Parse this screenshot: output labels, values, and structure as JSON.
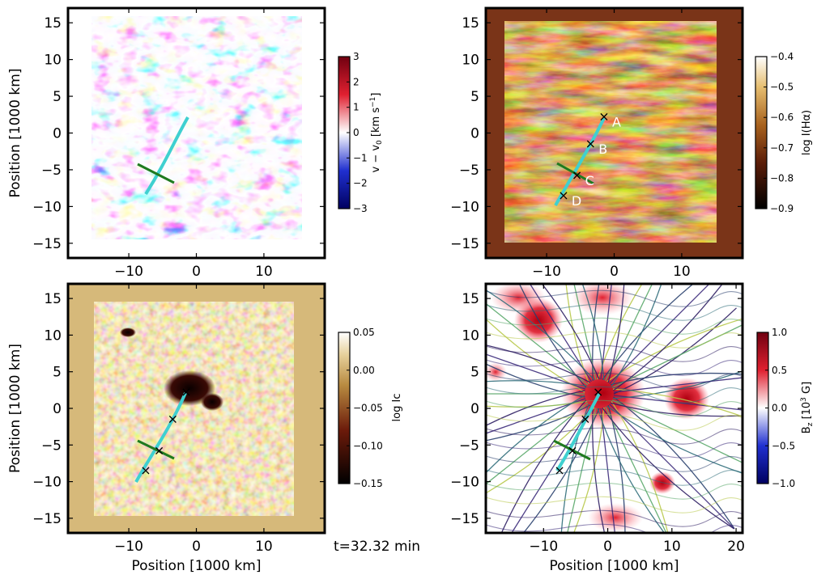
{
  "figure": {
    "time_label": "t=32.32 min"
  },
  "colors": {
    "doppler_red": "#c8102e",
    "doppler_blue": "#1b2a9c",
    "halpha_dark": "#2a0d05",
    "halpha_bright": "#fff2c8",
    "cont_dark": "#120400",
    "cont_bright": "#fffbe6",
    "bz_red": "#a50010",
    "bz_blue": "#00107a",
    "slit_cyan": "#3fd0d0",
    "cut_green": "#1f7a1f",
    "field_lines": "#2d1e63"
  },
  "chart_data": [
    {
      "id": "doppler",
      "type": "heatmap",
      "quantity": "line-of-sight velocity",
      "xlabel": "",
      "ylabel": "Position [1000 km]",
      "xlim": [
        -19,
        19
      ],
      "ylim": [
        -17,
        17
      ],
      "xticks": [
        "−10",
        "0",
        "10"
      ],
      "yticks": [
        "15",
        "10",
        "5",
        "0",
        "−5",
        "−10",
        "−15"
      ],
      "colorbar": {
        "label": "v − v0 [km s−1]",
        "range": [
          -3,
          3
        ],
        "ticks": [
          "3",
          "2",
          "1",
          "0",
          "−1",
          "−2",
          "−3"
        ],
        "colormap": "seismic (blue-white-red)"
      },
      "slit_markers": [],
      "cut_markers": [
        {
          "x": -5.5,
          "y": -6.0
        }
      ]
    },
    {
      "id": "halpha",
      "type": "heatmap",
      "quantity": "H-alpha line-core intensity",
      "xlabel": "",
      "ylabel": "",
      "xlim": [
        -19,
        19
      ],
      "ylim": [
        -17,
        17
      ],
      "xticks": [
        "−10",
        "0",
        "10"
      ],
      "yticks": [
        "15",
        "10",
        "5",
        "0",
        "−5",
        "−10",
        "−15"
      ],
      "colorbar": {
        "label": "log I(Hα)",
        "range": [
          -0.9,
          -0.4
        ],
        "ticks": [
          "−0.4",
          "−0.5",
          "−0.6",
          "−0.7",
          "−0.8",
          "−0.9"
        ],
        "colormap": "afmhot"
      },
      "slit_markers": [
        {
          "label": "A",
          "x": -1.5,
          "y": 2.2
        },
        {
          "label": "B",
          "x": -3.5,
          "y": -1.5
        },
        {
          "label": "C",
          "x": -5.5,
          "y": -5.8
        },
        {
          "label": "D",
          "x": -7.5,
          "y": -8.5
        }
      ]
    },
    {
      "id": "continuum",
      "type": "heatmap",
      "quantity": "continuum intensity",
      "xlabel": "Position [1000 km]",
      "ylabel": "Position [1000 km]",
      "xlim": [
        -19,
        19
      ],
      "ylim": [
        -17,
        17
      ],
      "xticks": [
        "−10",
        "0",
        "10"
      ],
      "yticks": [
        "15",
        "10",
        "5",
        "0",
        "−5",
        "−10",
        "−15"
      ],
      "colorbar": {
        "label": "log Ic",
        "range": [
          -0.15,
          0.05
        ],
        "ticks": [
          "0.05",
          "0.00",
          "−0.05",
          "−0.10",
          "−0.15"
        ],
        "colormap": "copper-like"
      },
      "slit_markers": [
        {
          "x": -1.5,
          "y": 2.2
        },
        {
          "x": -3.5,
          "y": -1.5
        },
        {
          "x": -5.5,
          "y": -5.8
        },
        {
          "x": -7.5,
          "y": -8.5
        }
      ]
    },
    {
      "id": "bz",
      "type": "heatmap",
      "quantity": "vertical magnetic field with field-line streamlines",
      "xlabel": "Position [1000 km]",
      "ylabel": "",
      "xlim": [
        -19,
        21
      ],
      "ylim": [
        -17,
        17
      ],
      "xticks": [
        "−10",
        "0",
        "10",
        "20"
      ],
      "yticks": [
        "15",
        "10",
        "5",
        "0",
        "−5",
        "−10",
        "−15"
      ],
      "colorbar": {
        "label": "Bz [10³ G]",
        "range": [
          -1.0,
          1.0
        ],
        "ticks": [
          "1.0",
          "0.5",
          "0.0",
          "−0.5",
          "−1.0"
        ],
        "colormap": "seismic (blue-white-red)"
      },
      "slit_markers": [
        {
          "x": -1.5,
          "y": 2.2
        },
        {
          "x": -3.5,
          "y": -1.5
        },
        {
          "x": -5.5,
          "y": -5.8
        },
        {
          "x": -7.5,
          "y": -8.5
        }
      ]
    }
  ]
}
